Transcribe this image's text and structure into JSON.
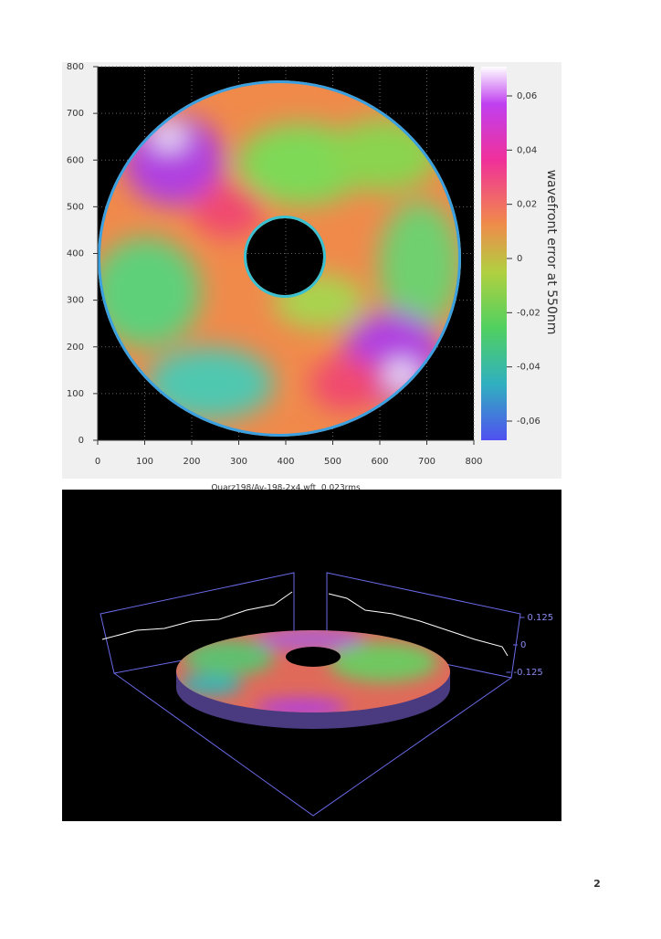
{
  "figure_1": {
    "x_ticks": [
      0,
      100,
      200,
      300,
      400,
      500,
      600,
      700,
      800
    ],
    "y_ticks": [
      0,
      100,
      200,
      300,
      400,
      500,
      600,
      700,
      800
    ],
    "colorbar_ticks": [
      {
        "value": 0.06,
        "label": "0,06"
      },
      {
        "value": 0.04,
        "label": "0,04"
      },
      {
        "value": 0.02,
        "label": "0,02"
      },
      0,
      {
        "value": -0.02,
        "label": "-0,02"
      },
      {
        "value": -0.04,
        "label": "-0,04"
      },
      {
        "value": -0.06,
        "label": "-0,06"
      }
    ],
    "colorbar_label": "wavefront error at 550nm",
    "caption": "Quarz198/Av-198-2x4.wft  0.023rms"
  },
  "figure_2": {
    "z_ticks": [
      0.125,
      0,
      -0.125
    ]
  },
  "page_number": "2"
}
